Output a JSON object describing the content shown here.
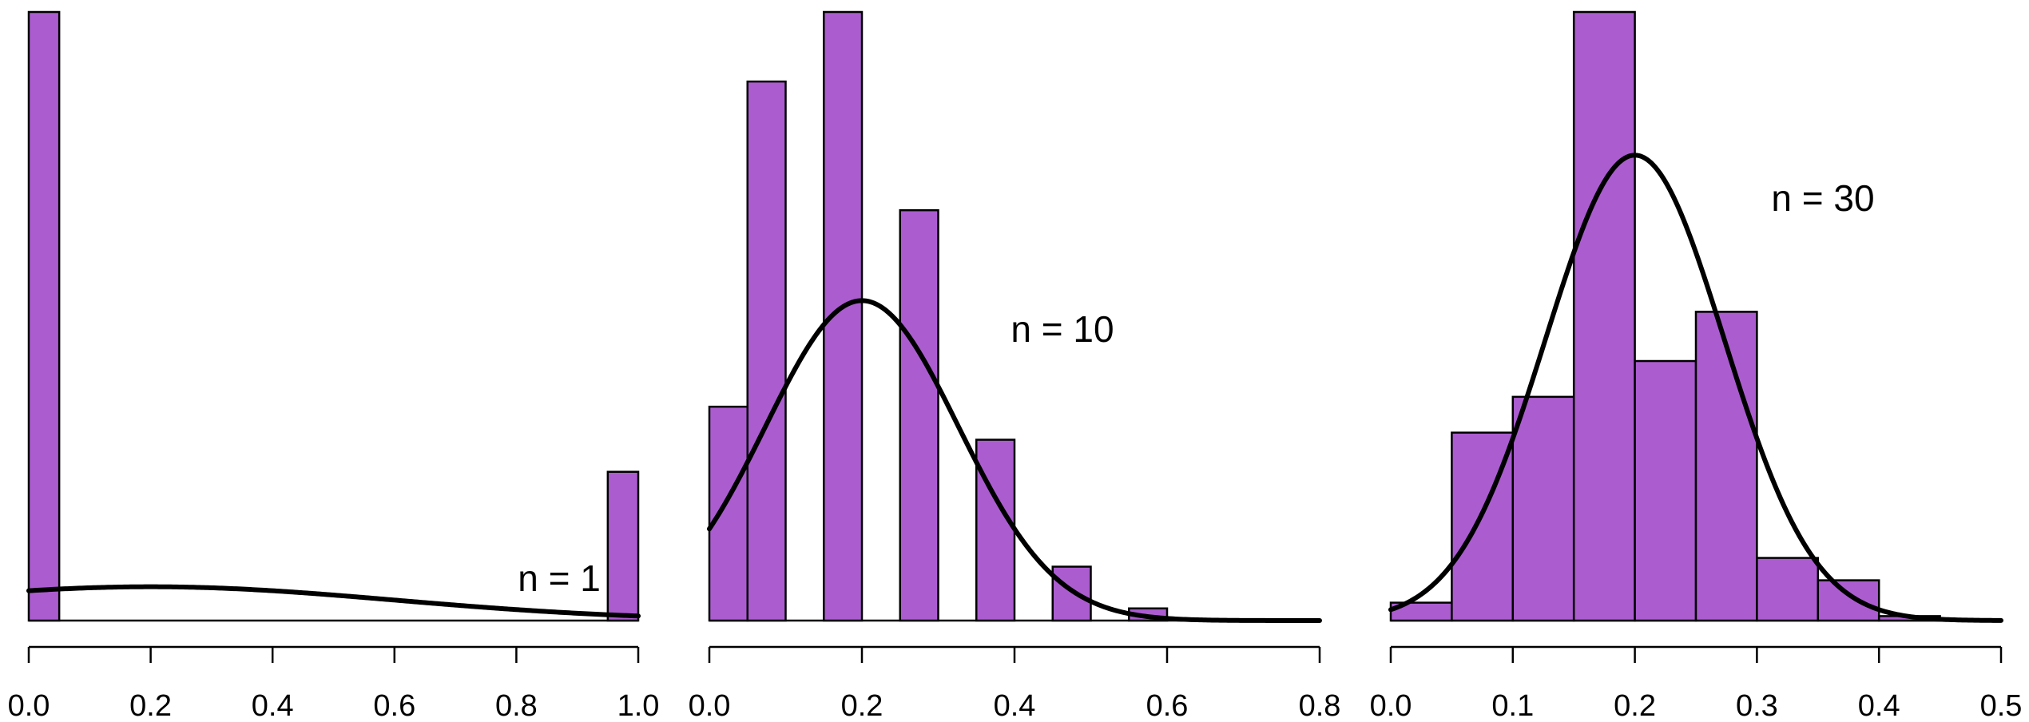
{
  "colors": {
    "bar_fill": "#ab5dd0",
    "bar_stroke": "#000000",
    "curve": "#000000",
    "background": "#ffffff"
  },
  "chart_data": [
    {
      "type": "bar",
      "subtype": "histogram-with-normal-curve",
      "annotation": "n = 1",
      "xlim": [
        0.0,
        1.0
      ],
      "ylim": [
        0,
        18
      ],
      "xticks": [
        0.0,
        0.2,
        0.4,
        0.6,
        0.8,
        1.0
      ],
      "xtick_labels": [
        "0.0",
        "0.2",
        "0.4",
        "0.6",
        "0.8",
        "1.0"
      ],
      "bin_edges": [
        0.0,
        0.05,
        0.1,
        0.15,
        0.2,
        0.25,
        0.3,
        0.35,
        0.4,
        0.45,
        0.5,
        0.55,
        0.6,
        0.65,
        0.7,
        0.75,
        0.8,
        0.85,
        0.9,
        0.95,
        1.0
      ],
      "values": [
        18.0,
        0,
        0,
        0,
        0,
        0,
        0,
        0,
        0,
        0,
        0,
        0,
        0,
        0,
        0,
        0,
        0,
        0,
        0,
        4.4
      ],
      "curve": {
        "mean": 0.2,
        "sd": 0.4,
        "peak": 1.0
      }
    },
    {
      "type": "bar",
      "subtype": "histogram-with-normal-curve",
      "annotation": "n = 10",
      "xlim": [
        0.0,
        0.8
      ],
      "ylim": [
        0,
        3.5
      ],
      "xticks": [
        0.0,
        0.2,
        0.4,
        0.6,
        0.8
      ],
      "xtick_labels": [
        "0.0",
        "0.2",
        "0.4",
        "0.6",
        "0.8"
      ],
      "bin_edges": [
        0.0,
        0.05,
        0.1,
        0.15,
        0.2,
        0.25,
        0.3,
        0.35,
        0.4,
        0.45,
        0.5,
        0.55,
        0.6
      ],
      "values": [
        1.23,
        3.1,
        0,
        3.5,
        0,
        2.36,
        0,
        1.04,
        0,
        0.31,
        0,
        0.07
      ],
      "curve": {
        "mean": 0.2,
        "sd": 0.1265,
        "peak": 1.84
      }
    },
    {
      "type": "bar",
      "subtype": "histogram-with-normal-curve",
      "annotation": "n = 30",
      "xlim": [
        0.0,
        0.5
      ],
      "ylim": [
        0,
        6.8
      ],
      "xticks": [
        0.0,
        0.1,
        0.2,
        0.3,
        0.4,
        0.5
      ],
      "xtick_labels": [
        "0.0",
        "0.1",
        "0.2",
        "0.3",
        "0.4",
        "0.5"
      ],
      "bin_edges": [
        0.0,
        0.05,
        0.1,
        0.15,
        0.2,
        0.25,
        0.3,
        0.35,
        0.4,
        0.45
      ],
      "values": [
        0.2,
        2.1,
        2.5,
        6.8,
        2.9,
        3.45,
        0.7,
        0.45,
        0.05
      ],
      "curve": {
        "mean": 0.2,
        "sd": 0.073,
        "peak": 5.2
      }
    }
  ]
}
